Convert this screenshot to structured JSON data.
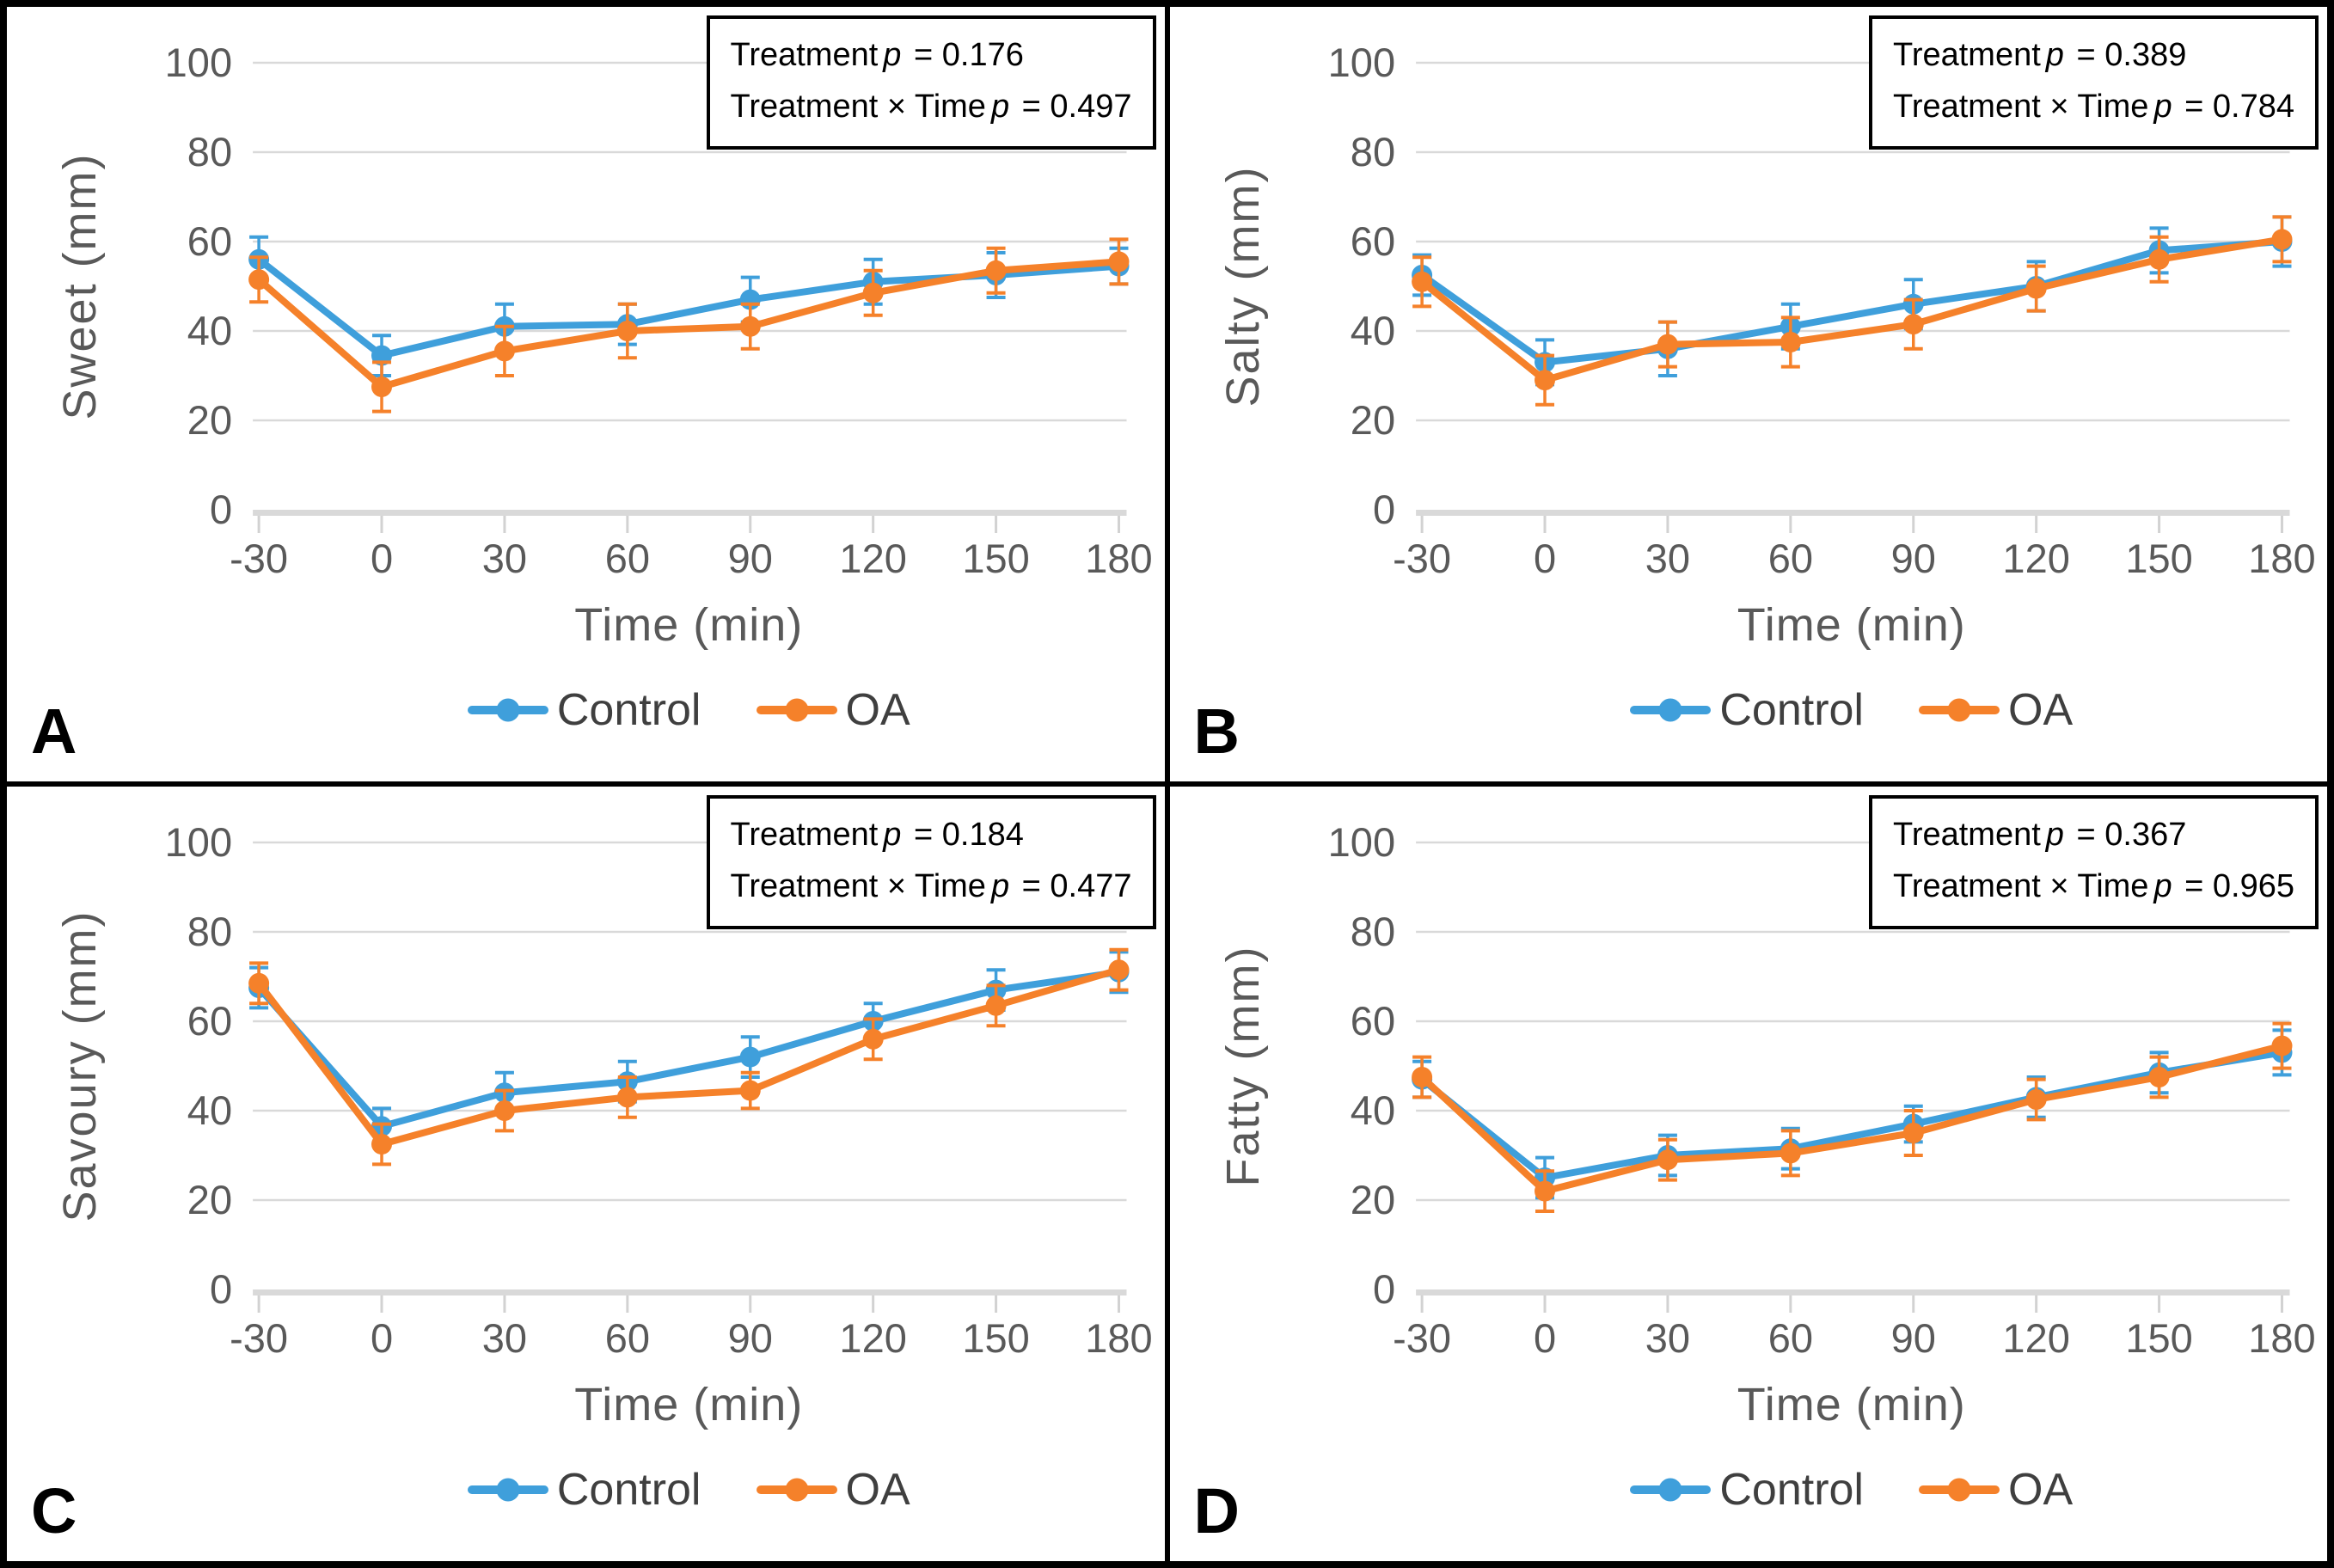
{
  "shared": {
    "x_axis_title": "Time (min)",
    "legend": {
      "items": [
        {
          "label": "Control",
          "color": "#3F9FDB"
        },
        {
          "label": "OA",
          "color": "#F5812A"
        }
      ]
    },
    "colors": {
      "control": "#3F9FDB",
      "oa": "#F5812A",
      "gridline": "#D9D9D9",
      "axis_labels": "#595959",
      "stats_text": "#000000"
    }
  },
  "panels": [
    {
      "letter": "A",
      "y_axis_title": "Sweet (mm)",
      "stats": {
        "treatment_label": "Treatment",
        "interaction_label": "Treatment × Time",
        "p_symbol": "p",
        "equals": "=",
        "treatment_p": "0.176",
        "interaction_p": "0.497"
      }
    },
    {
      "letter": "B",
      "y_axis_title": "Salty (mm)",
      "stats": {
        "treatment_label": "Treatment",
        "interaction_label": "Treatment × Time",
        "p_symbol": "p",
        "equals": "=",
        "treatment_p": "0.389",
        "interaction_p": "0.784"
      }
    },
    {
      "letter": "C",
      "y_axis_title": "Savoury (mm)",
      "stats": {
        "treatment_label": "Treatment",
        "interaction_label": "Treatment × Time",
        "p_symbol": "p",
        "equals": "=",
        "treatment_p": "0.184",
        "interaction_p": "0.477"
      }
    },
    {
      "letter": "D",
      "y_axis_title": "Fatty (mm)",
      "stats": {
        "treatment_label": "Treatment",
        "interaction_label": "Treatment × Time",
        "p_symbol": "p",
        "equals": "=",
        "treatment_p": "0.367",
        "interaction_p": "0.965"
      }
    }
  ],
  "chart_data": [
    {
      "type": "line",
      "title": "A",
      "ylabel": "Sweet (mm)",
      "xlabel": "Time (min)",
      "categories": [
        -30,
        0,
        30,
        60,
        90,
        120,
        150,
        180
      ],
      "ylim": [
        0,
        100
      ],
      "y_ticks": [
        0,
        20,
        40,
        60,
        80,
        100
      ],
      "grid": true,
      "legend_position": "bottom",
      "error_bars": true,
      "annotations": [
        "Treatment p = 0.176",
        "Treatment × Time p = 0.497"
      ],
      "series": [
        {
          "name": "Control",
          "color": "#3F9FDB",
          "values": [
            56,
            34.5,
            41,
            41.5,
            47,
            51,
            52.5,
            54.5
          ],
          "errors": [
            5,
            4.5,
            5,
            4.5,
            5,
            5,
            5,
            4
          ]
        },
        {
          "name": "OA",
          "color": "#F5812A",
          "values": [
            51.5,
            27.5,
            35.5,
            40,
            41,
            48.5,
            53.5,
            55.5
          ],
          "errors": [
            5,
            5.5,
            5.5,
            6,
            5,
            5,
            5,
            5
          ]
        }
      ]
    },
    {
      "type": "line",
      "title": "B",
      "ylabel": "Salty (mm)",
      "xlabel": "Time (min)",
      "categories": [
        -30,
        0,
        30,
        60,
        90,
        120,
        150,
        180
      ],
      "ylim": [
        0,
        100
      ],
      "y_ticks": [
        0,
        20,
        40,
        60,
        80,
        100
      ],
      "grid": true,
      "legend_position": "bottom",
      "error_bars": true,
      "annotations": [
        "Treatment p = 0.389",
        "Treatment × Time p = 0.784"
      ],
      "series": [
        {
          "name": "Control",
          "color": "#3F9FDB",
          "values": [
            52.5,
            33,
            36,
            41,
            46,
            50,
            58,
            60
          ],
          "errors": [
            4.5,
            5,
            6,
            5,
            5.5,
            5.5,
            5,
            5.5
          ]
        },
        {
          "name": "OA",
          "color": "#F5812A",
          "values": [
            51,
            29,
            37,
            37.5,
            41.5,
            49.5,
            56,
            60.5
          ],
          "errors": [
            5.5,
            5.5,
            5,
            5.5,
            5.5,
            5,
            5,
            5
          ]
        }
      ]
    },
    {
      "type": "line",
      "title": "C",
      "ylabel": "Savoury (mm)",
      "xlabel": "Time (min)",
      "categories": [
        -30,
        0,
        30,
        60,
        90,
        120,
        150,
        180
      ],
      "ylim": [
        0,
        100
      ],
      "y_ticks": [
        0,
        20,
        40,
        60,
        80,
        100
      ],
      "grid": true,
      "legend_position": "bottom",
      "error_bars": true,
      "annotations": [
        "Treatment p = 0.184",
        "Treatment × Time p = 0.477"
      ],
      "series": [
        {
          "name": "Control",
          "color": "#3F9FDB",
          "values": [
            67.5,
            36.5,
            44,
            46.5,
            52,
            60,
            67,
            71
          ],
          "errors": [
            4.5,
            4,
            4.5,
            4.5,
            4.5,
            4,
            4.5,
            4.5
          ]
        },
        {
          "name": "OA",
          "color": "#F5812A",
          "values": [
            68.5,
            32.5,
            40,
            43,
            44.5,
            56,
            63.5,
            71.5
          ],
          "errors": [
            4.5,
            4.5,
            4.5,
            4.5,
            4,
            4.5,
            4.5,
            4.5
          ]
        }
      ]
    },
    {
      "type": "line",
      "title": "D",
      "ylabel": "Fatty (mm)",
      "xlabel": "Time (min)",
      "categories": [
        -30,
        0,
        30,
        60,
        90,
        120,
        150,
        180
      ],
      "ylim": [
        0,
        100
      ],
      "y_ticks": [
        0,
        20,
        40,
        60,
        80,
        100
      ],
      "grid": true,
      "legend_position": "bottom",
      "error_bars": true,
      "annotations": [
        "Treatment p = 0.367",
        "Treatment × Time p = 0.965"
      ],
      "series": [
        {
          "name": "Control",
          "color": "#3F9FDB",
          "values": [
            47,
            25,
            30,
            31.5,
            37,
            43,
            48.5,
            53
          ],
          "errors": [
            4,
            4.5,
            4.5,
            4.5,
            4,
            4.5,
            4.5,
            5
          ]
        },
        {
          "name": "OA",
          "color": "#F5812A",
          "values": [
            47.5,
            22,
            29,
            30.5,
            35,
            42.5,
            47.5,
            54.5
          ],
          "errors": [
            4.5,
            4.5,
            4.5,
            5,
            5,
            4.5,
            4.5,
            5
          ]
        }
      ]
    }
  ]
}
